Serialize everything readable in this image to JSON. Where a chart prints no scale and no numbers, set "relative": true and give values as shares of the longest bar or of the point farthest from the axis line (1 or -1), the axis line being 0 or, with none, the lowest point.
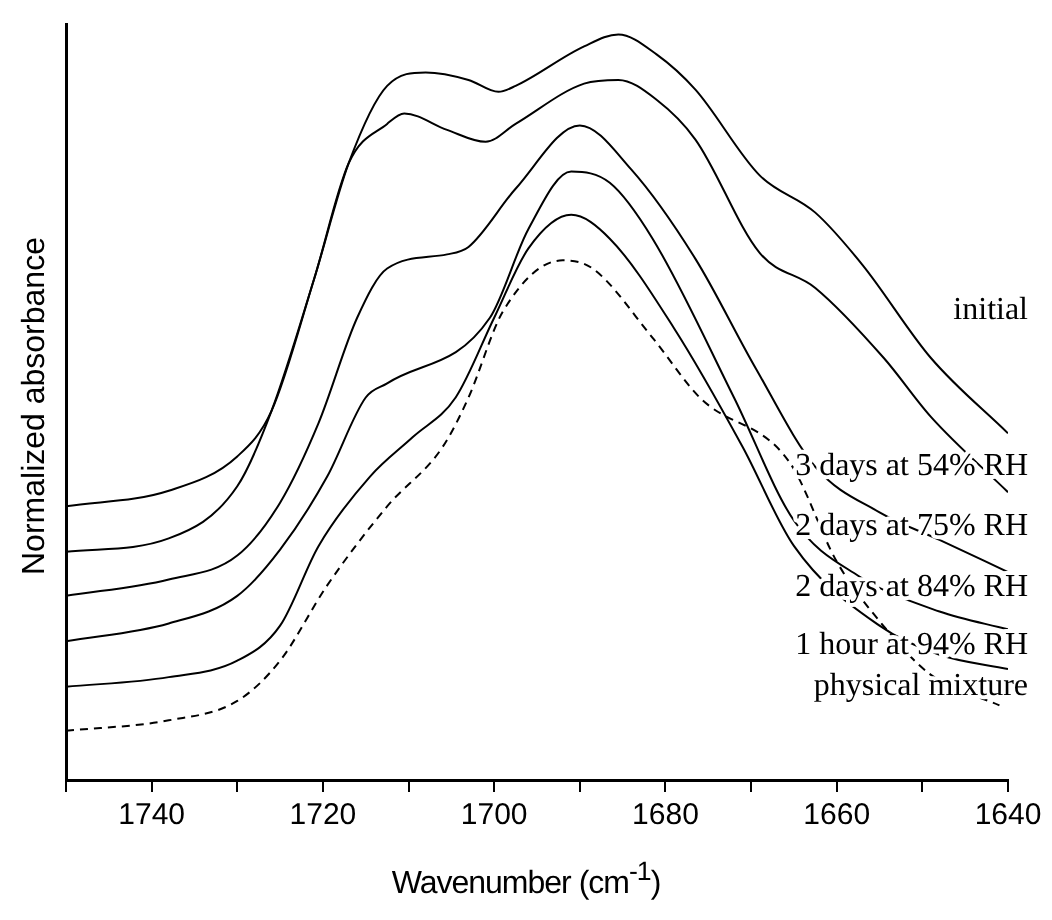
{
  "chart_data": {
    "type": "line",
    "xlabel": "Wavenumber (cm$^{-1}$)",
    "ylabel": "Normalized absorbance",
    "relative": true,
    "xlim": [
      1750,
      1640
    ],
    "xticks": [
      {
        "value": 1750,
        "label": null
      },
      1740,
      {
        "value": 1730,
        "label": null
      },
      1720,
      {
        "value": 1710,
        "label": null
      },
      1700,
      {
        "value": 1690,
        "label": null
      },
      1680,
      {
        "value": 1670,
        "label": null
      },
      1660,
      {
        "value": 1650,
        "label": null
      },
      1640
    ],
    "grid": false,
    "legend": false,
    "marker": "none",
    "line_style": "solid",
    "series": [
      {
        "name": "initial",
        "color": "#000000",
        "x": [
          1750,
          1738,
          1730,
          1726,
          1721,
          1717,
          1712.5,
          1708,
          1703,
          1699.5,
          1697.5,
          1689.5,
          1685.5,
          1681,
          1676.5,
          1669,
          1662.5,
          1657,
          1649,
          1640
        ],
        "values": [
          0.367,
          0.388,
          0.434,
          0.495,
          0.673,
          0.827,
          0.931,
          0.949,
          0.939,
          0.923,
          0.931,
          0.984,
          1,
          0.973,
          0.926,
          0.811,
          0.761,
          0.691,
          0.566,
          0.465
        ]
      },
      {
        "name": "3 days at 54% RH",
        "color": "#000000",
        "x": [
          1750,
          1738,
          1730,
          1726,
          1721,
          1717,
          1712.5,
          1710.5,
          1705.5,
          1701,
          1697.5,
          1689.5,
          1685.5,
          1681,
          1676.5,
          1669,
          1662.5,
          1654.5,
          1649,
          1640
        ],
        "values": [
          0.306,
          0.324,
          0.394,
          0.495,
          0.673,
          0.827,
          0.88,
          0.894,
          0.872,
          0.856,
          0.88,
          0.934,
          0.939,
          0.912,
          0.859,
          0.707,
          0.66,
          0.566,
          0.487,
          0.386
        ]
      },
      {
        "name": "2 days at 75% RH",
        "color": "#000000",
        "x": [
          1750,
          1738,
          1730,
          1725,
          1720.5,
          1716,
          1712.5,
          1705.5,
          1703,
          1697.5,
          1690,
          1684,
          1676.5,
          1669.5,
          1662.5,
          1655,
          1648,
          1640
        ],
        "values": [
          0.247,
          0.269,
          0.301,
          0.372,
          0.479,
          0.62,
          0.686,
          0.705,
          0.715,
          0.793,
          0.878,
          0.819,
          0.699,
          0.553,
          0.42,
          0.359,
          0.322,
          0.279
        ]
      },
      {
        "name": "2 days at 84% RH",
        "color": "#000000",
        "x": [
          1750,
          1738,
          1730,
          1725,
          1719.5,
          1715,
          1712.5,
          1700.5,
          1696,
          1691,
          1686.5,
          1681.5,
          1672,
          1665,
          1657.5,
          1648,
          1640
        ],
        "values": [
          0.186,
          0.21,
          0.247,
          0.309,
          0.407,
          0.513,
          0.532,
          0.62,
          0.739,
          0.816,
          0.801,
          0.726,
          0.513,
          0.348,
          0.274,
          0.226,
          0.202
        ]
      },
      {
        "name": "1 hour at 94% RH",
        "color": "#000000",
        "x": [
          1750,
          1738,
          1730,
          1725,
          1720.5,
          1714.5,
          1709.5,
          1704.5,
          1700,
          1696,
          1691,
          1686.5,
          1679,
          1671,
          1665,
          1655,
          1648,
          1640
        ],
        "values": [
          0.125,
          0.138,
          0.16,
          0.207,
          0.314,
          0.407,
          0.46,
          0.513,
          0.62,
          0.713,
          0.758,
          0.726,
          0.606,
          0.447,
          0.314,
          0.207,
          0.168,
          0.149
        ]
      },
      {
        "name": "physical mixture",
        "color": "#000000",
        "line_style": "dashed",
        "x": [
          1750,
          1738,
          1730,
          1725,
          1719.5,
          1712.5,
          1706,
          1703,
          1699,
          1692,
          1688.5,
          1681.5,
          1676,
          1665.5,
          1660,
          1655,
          1649,
          1641
        ],
        "values": [
          0.066,
          0.08,
          0.106,
          0.16,
          0.261,
          0.367,
          0.447,
          0.513,
          0.628,
          0.697,
          0.686,
          0.593,
          0.513,
          0.426,
          0.293,
          0.213,
          0.141,
          0.1
        ]
      }
    ]
  }
}
